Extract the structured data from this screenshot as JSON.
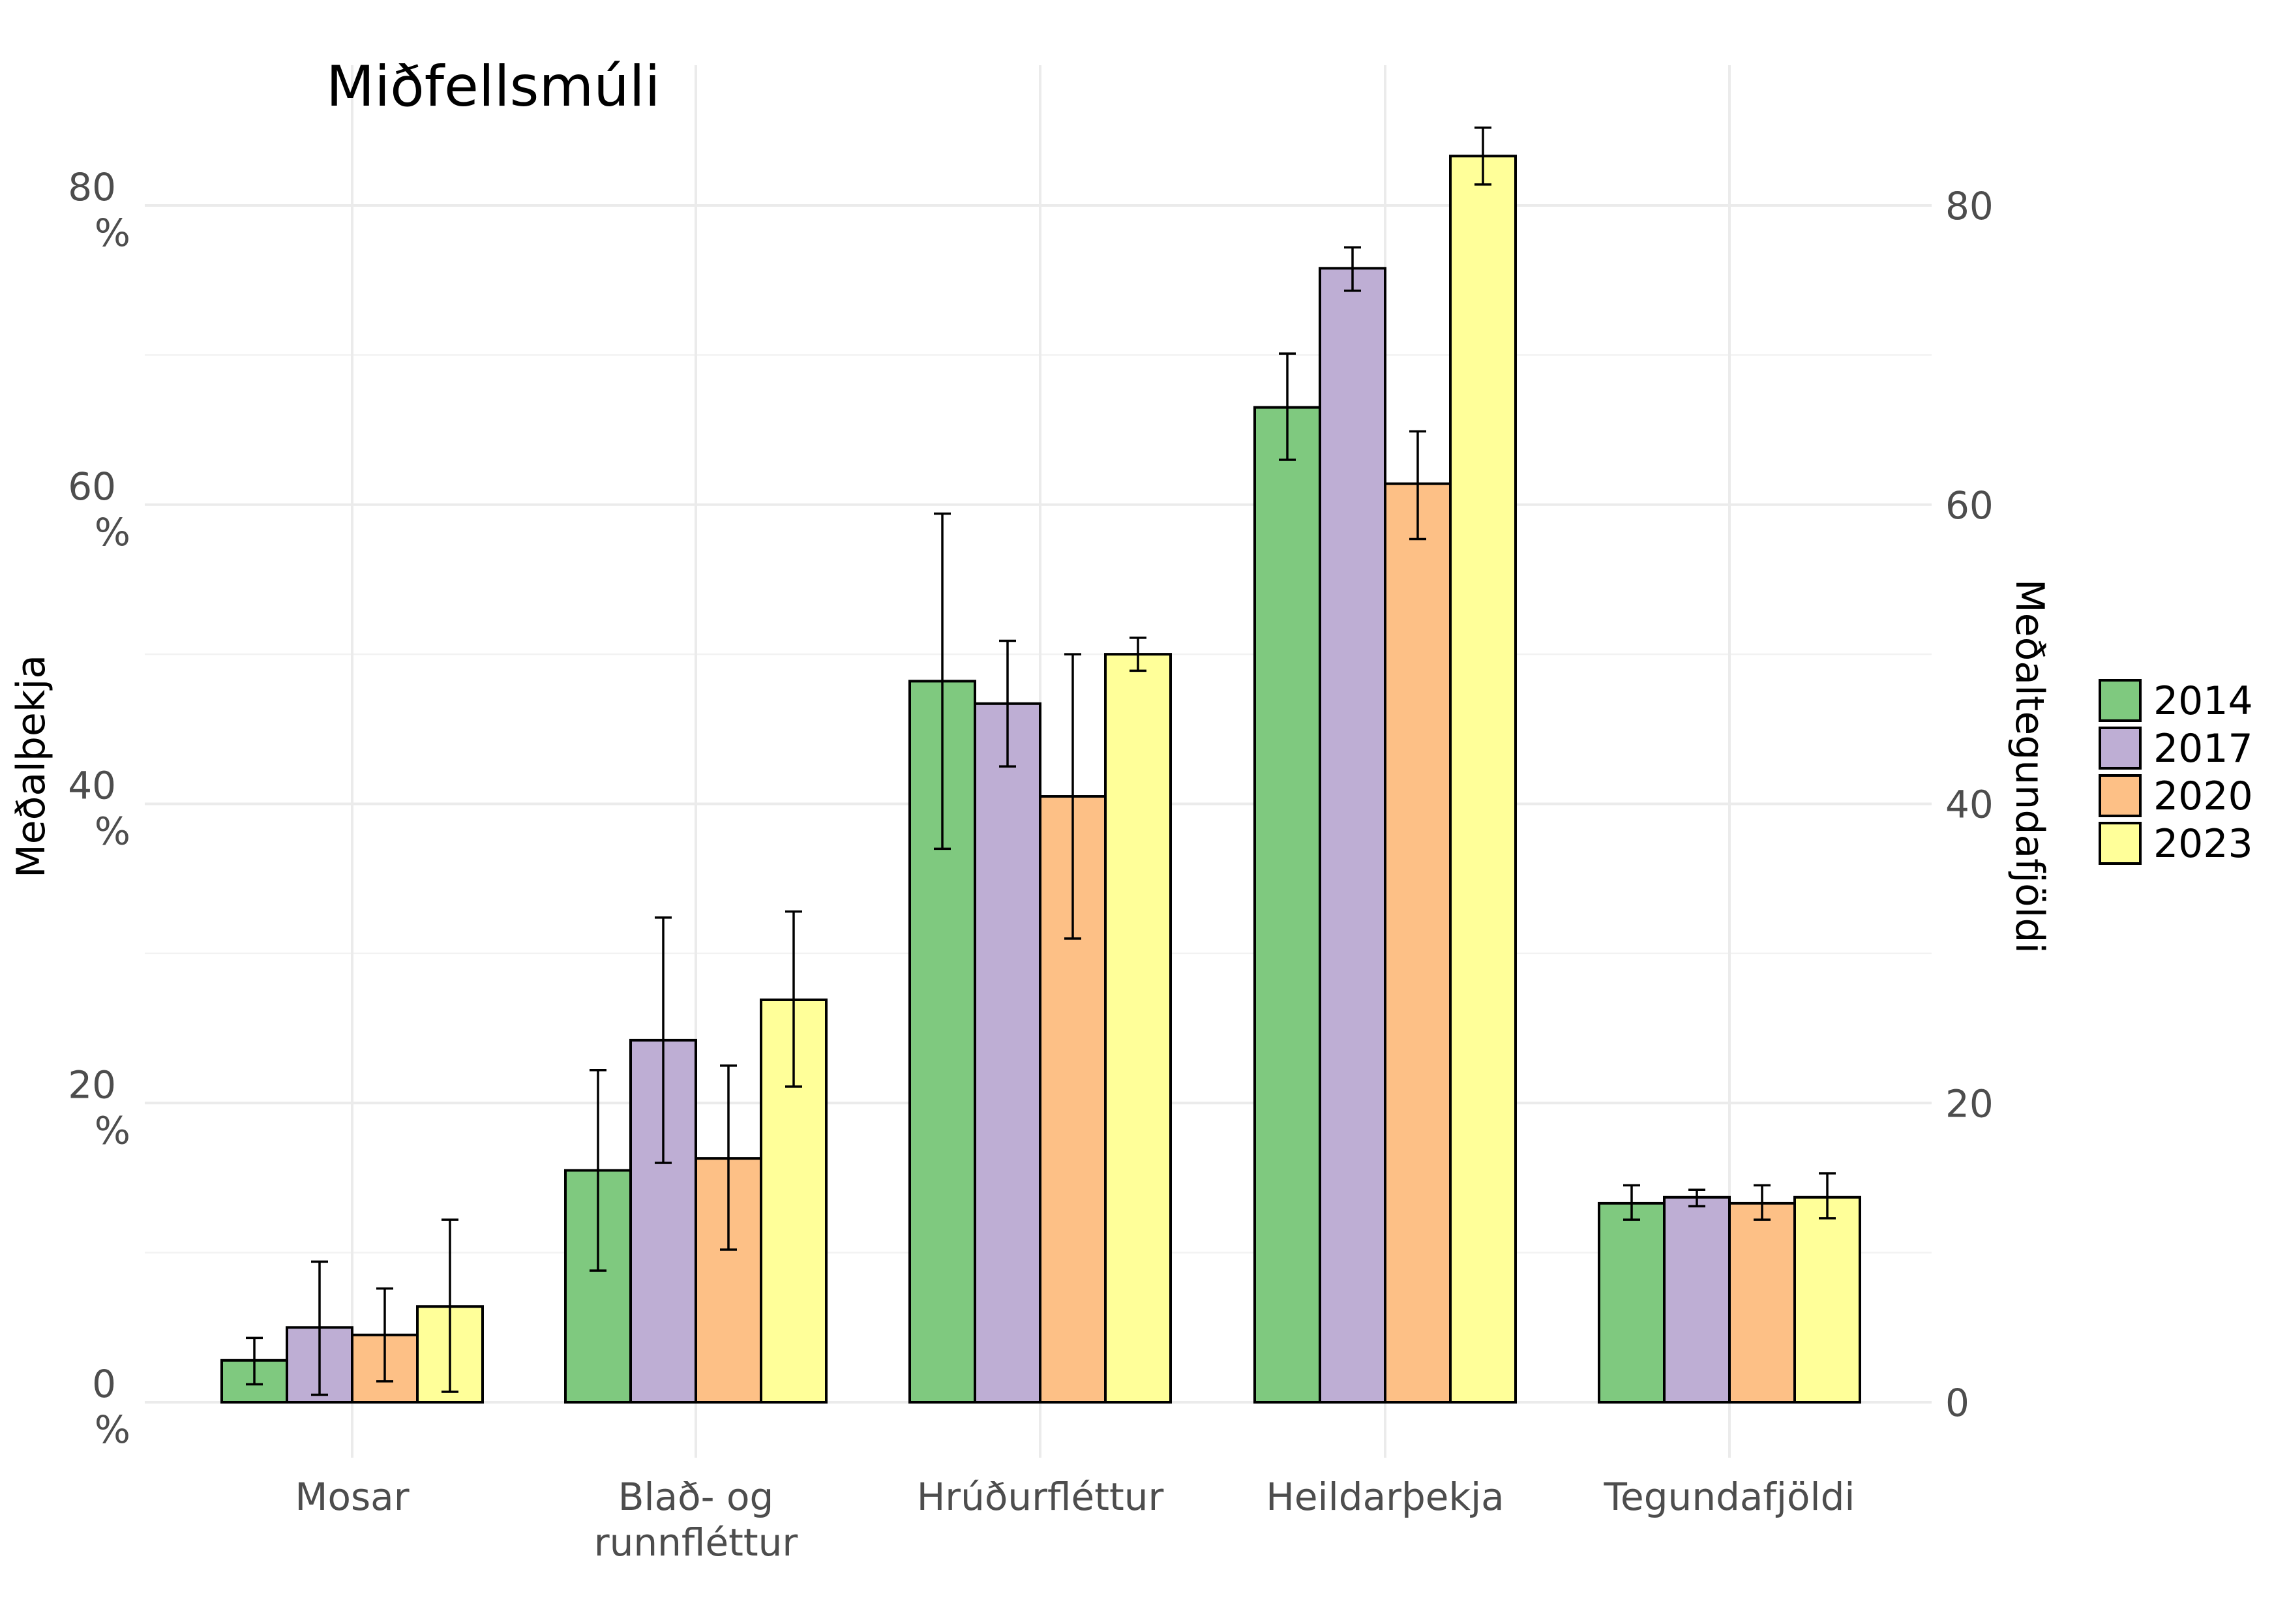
{
  "chart_data": {
    "type": "bar",
    "title": "Miðfellsmúli",
    "ylabel": "Meðalþekja",
    "y2label": "Meðaltegundafjöldi",
    "ylim": [
      0,
      85
    ],
    "y_ticks": [
      0,
      20,
      40,
      60,
      80
    ],
    "y_tick_labels": [
      {
        "value": "0",
        "unit": "%"
      },
      {
        "value": "20",
        "unit": "%"
      },
      {
        "value": "40",
        "unit": "%"
      },
      {
        "value": "60",
        "unit": "%"
      },
      {
        "value": "80",
        "unit": "%"
      }
    ],
    "y2_ticks": [
      "0",
      "20",
      "40",
      "60",
      "80"
    ],
    "categories": [
      "Mosar",
      "Blað- og runnfléttur",
      "Hrúðurfléttur",
      "Heildarþekja",
      "Tegundafjöldi"
    ],
    "category_lines": [
      [
        "Mosar"
      ],
      [
        "Blað- og",
        "runnfléttur"
      ],
      [
        "Hrúðurfléttur"
      ],
      [
        "Heildarþekja"
      ],
      [
        "Tegundafjöldi"
      ]
    ],
    "legend_position": "right",
    "grid": true,
    "series": [
      {
        "name": "2014",
        "color": "#7fc97f",
        "values": [
          2.8,
          15.5,
          48.2,
          66.5,
          13.3
        ],
        "err_low": [
          1.2,
          8.8,
          37.0,
          63.0,
          12.2
        ],
        "err_high": [
          4.3,
          22.2,
          59.4,
          70.1,
          14.5
        ]
      },
      {
        "name": "2017",
        "color": "#beaed4",
        "values": [
          5.0,
          24.2,
          46.7,
          75.8,
          13.7
        ],
        "err_low": [
          0.5,
          16.0,
          42.5,
          74.3,
          13.1
        ],
        "err_high": [
          9.4,
          32.4,
          50.9,
          77.2,
          14.2
        ]
      },
      {
        "name": "2020",
        "color": "#fdc086",
        "values": [
          4.5,
          16.3,
          40.5,
          61.4,
          13.3
        ],
        "err_low": [
          1.4,
          10.2,
          31.0,
          57.7,
          12.2
        ],
        "err_high": [
          7.6,
          22.5,
          50.0,
          64.9,
          14.5
        ]
      },
      {
        "name": "2023",
        "color": "#ffff99",
        "values": [
          6.4,
          26.9,
          50.0,
          83.3,
          13.7
        ],
        "err_low": [
          0.7,
          21.1,
          48.9,
          81.4,
          12.3
        ],
        "err_high": [
          12.2,
          32.8,
          51.1,
          85.2,
          15.3
        ]
      }
    ]
  }
}
